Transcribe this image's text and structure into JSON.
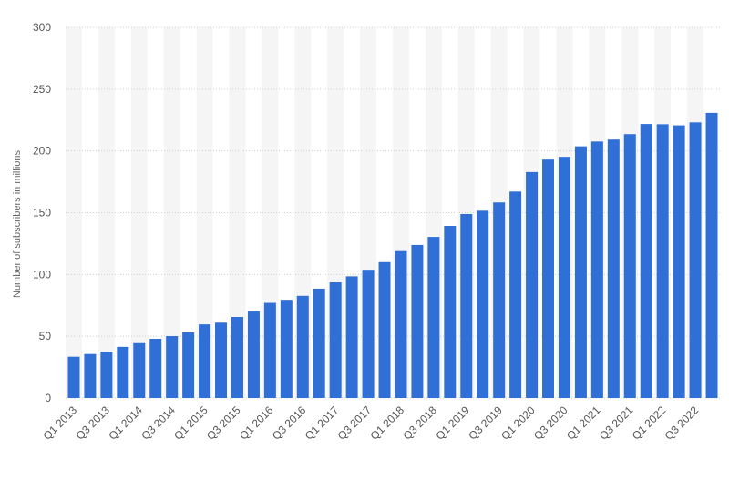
{
  "chart_data": {
    "type": "bar",
    "ylabel": "Number of subscribers in millions",
    "ylim": [
      0,
      300
    ],
    "y_ticks": [
      0,
      50,
      100,
      150,
      200,
      250,
      300
    ],
    "grid": "horizontal dotted",
    "bar_color": "#2f6fd6",
    "band_color": "#f5f5f5",
    "categories": [
      "Q1 2013",
      "Q2 2013",
      "Q3 2013",
      "Q4 2013",
      "Q1 2014",
      "Q2 2014",
      "Q3 2014",
      "Q4 2014",
      "Q1 2015",
      "Q2 2015",
      "Q3 2015",
      "Q4 2015",
      "Q1 2016",
      "Q2 2016",
      "Q3 2016",
      "Q4 2016",
      "Q1 2017",
      "Q2 2017",
      "Q3 2017",
      "Q4 2017",
      "Q1 2018",
      "Q2 2018",
      "Q3 2018",
      "Q4 2018",
      "Q1 2019",
      "Q2 2019",
      "Q3 2019",
      "Q4 2019",
      "Q1 2020",
      "Q2 2020",
      "Q3 2020",
      "Q4 2020",
      "Q1 2021",
      "Q2 2021",
      "Q3 2021",
      "Q4 2021",
      "Q1 2022",
      "Q2 2022",
      "Q3 2022",
      "Q4 2022"
    ],
    "shown_labels": [
      "Q1 2013",
      "Q3 2013",
      "Q1 2014",
      "Q3 2014",
      "Q1 2015",
      "Q3 2015",
      "Q1 2016",
      "Q3 2016",
      "Q1 2017",
      "Q3 2017",
      "Q1 2018",
      "Q3 2018",
      "Q1 2019",
      "Q3 2019",
      "Q1 2020",
      "Q3 2020",
      "Q1 2021",
      "Q3 2021",
      "Q1 2022",
      "Q3 2022"
    ],
    "values": [
      33.4,
      35.6,
      37.6,
      41.4,
      44.4,
      47.9,
      50.1,
      53.1,
      59.6,
      61.0,
      65.6,
      70.0,
      77.0,
      79.5,
      82.7,
      88.5,
      93.6,
      98.5,
      103.8,
      110.0,
      118.9,
      123.9,
      130.4,
      139.3,
      148.9,
      151.6,
      158.3,
      167.1,
      182.9,
      193.0,
      195.2,
      203.7,
      207.6,
      209.2,
      213.6,
      221.8,
      221.6,
      220.7,
      223.1,
      230.8
    ]
  }
}
